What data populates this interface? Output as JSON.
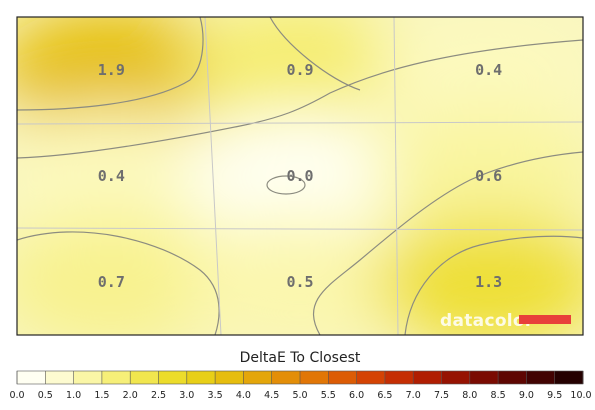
{
  "chart_data": {
    "type": "heatmap",
    "title": "DeltaE To Closest",
    "rows": 3,
    "cols": 3,
    "values": [
      [
        1.9,
        0.9,
        0.4
      ],
      [
        0.4,
        0.0,
        0.6
      ],
      [
        0.7,
        0.5,
        1.3
      ]
    ],
    "labels": [
      [
        "1.9",
        "0.9",
        "0.4"
      ],
      [
        "0.4",
        "0.0",
        "0.6"
      ],
      [
        "0.7",
        "0.5",
        "1.3"
      ]
    ],
    "scale": {
      "min": 0.0,
      "max": 10.0,
      "ticks": [
        "0.0",
        "0.5",
        "1.0",
        "1.5",
        "2.0",
        "2.5",
        "3.0",
        "3.5",
        "4.0",
        "4.5",
        "5.0",
        "5.5",
        "6.0",
        "6.5",
        "7.0",
        "7.5",
        "8.0",
        "8.5",
        "9.0",
        "9.5",
        "10.0"
      ],
      "colors": [
        "#fffff2",
        "#fdfbd0",
        "#faf6a6",
        "#f6ef78",
        "#f1e64e",
        "#ecdc2a",
        "#e8cf17",
        "#e6bd0e",
        "#e4a60a",
        "#e38e08",
        "#e17606",
        "#dc5c05",
        "#d44304",
        "#c52e03",
        "#b01e02",
        "#961302",
        "#7a0b02",
        "#5e0602",
        "#420302",
        "#250101",
        "#050000"
      ]
    },
    "grid": true,
    "legend": "bottom"
  },
  "watermark": {
    "brand": "datacolor",
    "accent": "#e8403a"
  }
}
